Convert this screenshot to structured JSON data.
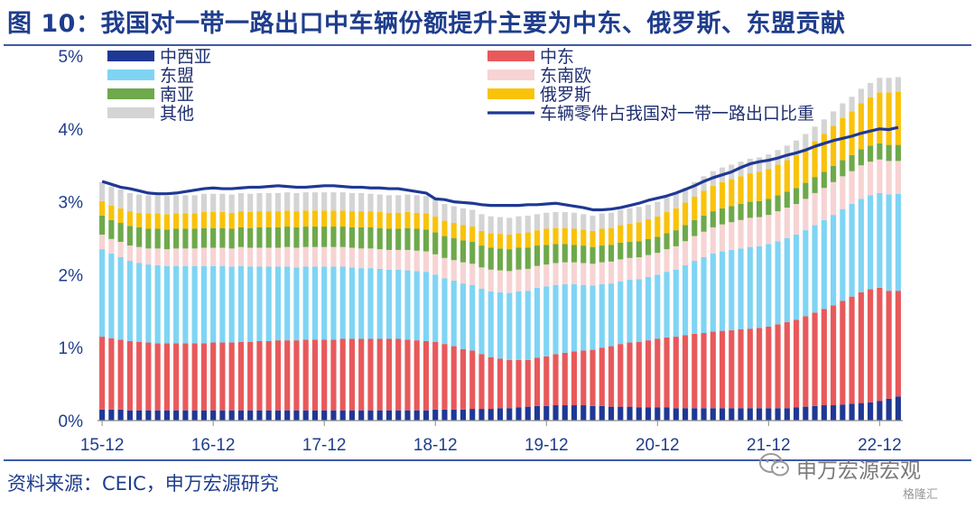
{
  "title": "图 10：我国对一带一路出口中车辆份额提升主要为中东、俄罗斯、东盟贡献",
  "source": "资料来源：CEIC，申万宏源研究",
  "watermark": {
    "text": "申万宏源宏观",
    "sub": "格隆汇"
  },
  "colors": {
    "中西亚": "#1f3894",
    "中东": "#e8595b",
    "东盟": "#7fd4f4",
    "东南欧": "#f7d3d3",
    "南亚": "#6ea94b",
    "俄罗斯": "#f9c20b",
    "其他": "#d4d4d4",
    "line": "#1f3894",
    "axis_text": "#1f3d8c"
  },
  "chart_data": {
    "type": "bar",
    "stacked": true,
    "title": "",
    "xlabel": "",
    "ylabel": "",
    "ylim": [
      0,
      5
    ],
    "y_ticks": [
      "0%",
      "1%",
      "2%",
      "3%",
      "4%",
      "5%"
    ],
    "x_tick_labels": [
      "15-12",
      "16-12",
      "17-12",
      "18-12",
      "19-12",
      "20-12",
      "21-12",
      "22-12"
    ],
    "legend": {
      "left": [
        "中西亚",
        "东盟",
        "南亚",
        "其他"
      ],
      "right": [
        "中东",
        "东南欧",
        "俄罗斯",
        "车辆零件占我国对一带一路出口比重"
      ]
    },
    "months": [
      "2015-12",
      "2016-01",
      "2016-02",
      "2016-03",
      "2016-04",
      "2016-05",
      "2016-06",
      "2016-07",
      "2016-08",
      "2016-09",
      "2016-10",
      "2016-11",
      "2016-12",
      "2017-01",
      "2017-02",
      "2017-03",
      "2017-04",
      "2017-05",
      "2017-06",
      "2017-07",
      "2017-08",
      "2017-09",
      "2017-10",
      "2017-11",
      "2017-12",
      "2018-01",
      "2018-02",
      "2018-03",
      "2018-04",
      "2018-05",
      "2018-06",
      "2018-07",
      "2018-08",
      "2018-09",
      "2018-10",
      "2018-11",
      "2018-12",
      "2019-01",
      "2019-02",
      "2019-03",
      "2019-04",
      "2019-05",
      "2019-06",
      "2019-07",
      "2019-08",
      "2019-09",
      "2019-10",
      "2019-11",
      "2019-12",
      "2020-01",
      "2020-02",
      "2020-03",
      "2020-04",
      "2020-05",
      "2020-06",
      "2020-07",
      "2020-08",
      "2020-09",
      "2020-10",
      "2020-11",
      "2020-12",
      "2021-01",
      "2021-02",
      "2021-03",
      "2021-04",
      "2021-05",
      "2021-06",
      "2021-07",
      "2021-08",
      "2021-09",
      "2021-10",
      "2021-11",
      "2021-12",
      "2022-01",
      "2022-02",
      "2022-03",
      "2022-04",
      "2022-05",
      "2022-06",
      "2022-07",
      "2022-08",
      "2022-09",
      "2022-10",
      "2022-11",
      "2022-12",
      "2023-01",
      "2023-02"
    ],
    "series": [
      {
        "name": "中西亚",
        "values": [
          0.15,
          0.15,
          0.15,
          0.14,
          0.14,
          0.14,
          0.14,
          0.14,
          0.14,
          0.14,
          0.14,
          0.14,
          0.14,
          0.14,
          0.14,
          0.14,
          0.14,
          0.14,
          0.14,
          0.14,
          0.14,
          0.14,
          0.14,
          0.14,
          0.14,
          0.14,
          0.14,
          0.14,
          0.14,
          0.14,
          0.14,
          0.14,
          0.14,
          0.14,
          0.14,
          0.14,
          0.15,
          0.15,
          0.15,
          0.15,
          0.16,
          0.16,
          0.16,
          0.17,
          0.17,
          0.18,
          0.19,
          0.2,
          0.2,
          0.21,
          0.21,
          0.21,
          0.21,
          0.2,
          0.2,
          0.19,
          0.19,
          0.19,
          0.18,
          0.18,
          0.18,
          0.18,
          0.17,
          0.17,
          0.17,
          0.17,
          0.17,
          0.17,
          0.17,
          0.17,
          0.17,
          0.17,
          0.17,
          0.17,
          0.17,
          0.18,
          0.19,
          0.2,
          0.21,
          0.21,
          0.22,
          0.23,
          0.24,
          0.25,
          0.27,
          0.3,
          0.33
        ]
      },
      {
        "name": "中东",
        "values": [
          1.0,
          0.98,
          0.96,
          0.95,
          0.94,
          0.93,
          0.92,
          0.92,
          0.92,
          0.92,
          0.92,
          0.92,
          0.93,
          0.93,
          0.93,
          0.94,
          0.94,
          0.95,
          0.95,
          0.96,
          0.96,
          0.96,
          0.97,
          0.97,
          0.97,
          0.97,
          0.98,
          0.98,
          0.98,
          0.98,
          0.98,
          0.98,
          0.98,
          0.97,
          0.96,
          0.95,
          0.93,
          0.9,
          0.87,
          0.83,
          0.8,
          0.75,
          0.71,
          0.68,
          0.66,
          0.65,
          0.64,
          0.66,
          0.68,
          0.7,
          0.72,
          0.74,
          0.75,
          0.77,
          0.8,
          0.83,
          0.86,
          0.88,
          0.9,
          0.92,
          0.94,
          0.96,
          0.98,
          1.0,
          1.02,
          1.03,
          1.05,
          1.06,
          1.07,
          1.08,
          1.09,
          1.1,
          1.12,
          1.15,
          1.18,
          1.2,
          1.24,
          1.28,
          1.32,
          1.37,
          1.42,
          1.47,
          1.52,
          1.55,
          1.55,
          1.48,
          1.45
        ]
      },
      {
        "name": "东盟",
        "values": [
          1.2,
          1.16,
          1.13,
          1.1,
          1.08,
          1.07,
          1.07,
          1.06,
          1.06,
          1.06,
          1.06,
          1.06,
          1.05,
          1.05,
          1.04,
          1.04,
          1.03,
          1.02,
          1.02,
          1.01,
          1.01,
          1.0,
          1.0,
          1.0,
          1.0,
          1.0,
          0.99,
          0.98,
          0.97,
          0.97,
          0.96,
          0.95,
          0.95,
          0.95,
          0.95,
          0.95,
          0.92,
          0.9,
          0.9,
          0.9,
          0.9,
          0.9,
          0.9,
          0.91,
          0.92,
          0.94,
          0.95,
          0.96,
          0.96,
          0.95,
          0.94,
          0.92,
          0.9,
          0.88,
          0.87,
          0.86,
          0.86,
          0.86,
          0.86,
          0.87,
          0.88,
          0.9,
          0.92,
          0.96,
          1.0,
          1.04,
          1.07,
          1.09,
          1.1,
          1.11,
          1.12,
          1.12,
          1.13,
          1.14,
          1.15,
          1.17,
          1.18,
          1.2,
          1.22,
          1.24,
          1.26,
          1.27,
          1.28,
          1.29,
          1.3,
          1.32,
          1.33
        ]
      },
      {
        "name": "东南欧",
        "values": [
          0.2,
          0.2,
          0.21,
          0.21,
          0.22,
          0.22,
          0.23,
          0.23,
          0.24,
          0.24,
          0.24,
          0.25,
          0.25,
          0.25,
          0.25,
          0.26,
          0.26,
          0.26,
          0.26,
          0.26,
          0.27,
          0.27,
          0.27,
          0.27,
          0.27,
          0.27,
          0.27,
          0.27,
          0.27,
          0.27,
          0.27,
          0.27,
          0.27,
          0.28,
          0.28,
          0.28,
          0.28,
          0.28,
          0.28,
          0.29,
          0.29,
          0.29,
          0.3,
          0.3,
          0.3,
          0.3,
          0.3,
          0.3,
          0.3,
          0.3,
          0.3,
          0.3,
          0.3,
          0.3,
          0.3,
          0.3,
          0.3,
          0.3,
          0.3,
          0.3,
          0.3,
          0.31,
          0.32,
          0.33,
          0.34,
          0.35,
          0.36,
          0.37,
          0.38,
          0.39,
          0.4,
          0.4,
          0.4,
          0.41,
          0.42,
          0.42,
          0.43,
          0.44,
          0.44,
          0.45,
          0.45,
          0.45,
          0.46,
          0.46,
          0.46,
          0.46,
          0.45
        ]
      },
      {
        "name": "南亚",
        "values": [
          0.26,
          0.26,
          0.26,
          0.27,
          0.27,
          0.27,
          0.27,
          0.27,
          0.27,
          0.27,
          0.27,
          0.27,
          0.27,
          0.27,
          0.27,
          0.27,
          0.27,
          0.28,
          0.28,
          0.28,
          0.28,
          0.28,
          0.28,
          0.28,
          0.28,
          0.28,
          0.28,
          0.28,
          0.29,
          0.29,
          0.29,
          0.29,
          0.29,
          0.3,
          0.3,
          0.3,
          0.3,
          0.3,
          0.3,
          0.3,
          0.3,
          0.3,
          0.3,
          0.3,
          0.3,
          0.3,
          0.29,
          0.28,
          0.27,
          0.26,
          0.25,
          0.24,
          0.24,
          0.23,
          0.23,
          0.23,
          0.23,
          0.22,
          0.22,
          0.22,
          0.22,
          0.22,
          0.22,
          0.22,
          0.22,
          0.22,
          0.22,
          0.22,
          0.22,
          0.22,
          0.22,
          0.22,
          0.22,
          0.22,
          0.22,
          0.22,
          0.22,
          0.22,
          0.22,
          0.22,
          0.22,
          0.22,
          0.22,
          0.22,
          0.22,
          0.22,
          0.22
        ]
      },
      {
        "name": "俄罗斯",
        "values": [
          0.2,
          0.2,
          0.2,
          0.2,
          0.2,
          0.21,
          0.21,
          0.21,
          0.21,
          0.21,
          0.21,
          0.22,
          0.22,
          0.22,
          0.22,
          0.22,
          0.22,
          0.22,
          0.22,
          0.22,
          0.22,
          0.22,
          0.22,
          0.22,
          0.22,
          0.22,
          0.22,
          0.22,
          0.22,
          0.22,
          0.22,
          0.22,
          0.22,
          0.22,
          0.22,
          0.22,
          0.22,
          0.21,
          0.21,
          0.21,
          0.21,
          0.2,
          0.2,
          0.2,
          0.2,
          0.2,
          0.21,
          0.21,
          0.22,
          0.22,
          0.22,
          0.22,
          0.22,
          0.22,
          0.23,
          0.23,
          0.24,
          0.25,
          0.26,
          0.27,
          0.28,
          0.29,
          0.3,
          0.31,
          0.32,
          0.34,
          0.35,
          0.36,
          0.37,
          0.38,
          0.39,
          0.4,
          0.41,
          0.42,
          0.43,
          0.45,
          0.47,
          0.49,
          0.52,
          0.55,
          0.58,
          0.6,
          0.63,
          0.66,
          0.7,
          0.72,
          0.73
        ]
      },
      {
        "name": "其他",
        "values": [
          0.26,
          0.26,
          0.26,
          0.25,
          0.25,
          0.25,
          0.25,
          0.25,
          0.25,
          0.25,
          0.25,
          0.25,
          0.25,
          0.25,
          0.25,
          0.25,
          0.25,
          0.25,
          0.25,
          0.25,
          0.25,
          0.25,
          0.25,
          0.25,
          0.25,
          0.25,
          0.25,
          0.25,
          0.25,
          0.24,
          0.24,
          0.24,
          0.24,
          0.24,
          0.24,
          0.24,
          0.24,
          0.23,
          0.23,
          0.23,
          0.23,
          0.23,
          0.23,
          0.23,
          0.23,
          0.23,
          0.23,
          0.22,
          0.22,
          0.22,
          0.22,
          0.22,
          0.21,
          0.21,
          0.21,
          0.21,
          0.21,
          0.21,
          0.21,
          0.2,
          0.2,
          0.2,
          0.2,
          0.2,
          0.2,
          0.2,
          0.2,
          0.2,
          0.2,
          0.2,
          0.2,
          0.2,
          0.2,
          0.2,
          0.2,
          0.2,
          0.2,
          0.2,
          0.2,
          0.2,
          0.2,
          0.2,
          0.2,
          0.2,
          0.2,
          0.2,
          0.2
        ]
      }
    ],
    "line": {
      "name": "车辆零件占我国对一带一路出口比重",
      "values": [
        3.28,
        3.24,
        3.2,
        3.18,
        3.15,
        3.12,
        3.11,
        3.11,
        3.12,
        3.14,
        3.16,
        3.18,
        3.19,
        3.18,
        3.18,
        3.19,
        3.2,
        3.2,
        3.21,
        3.22,
        3.21,
        3.2,
        3.2,
        3.21,
        3.22,
        3.22,
        3.21,
        3.2,
        3.2,
        3.19,
        3.19,
        3.18,
        3.18,
        3.16,
        3.14,
        3.12,
        3.04,
        3.03,
        3.0,
        2.99,
        2.98,
        2.96,
        2.95,
        2.95,
        2.95,
        2.95,
        2.96,
        2.96,
        2.97,
        2.98,
        2.96,
        2.94,
        2.92,
        2.89,
        2.89,
        2.9,
        2.92,
        2.95,
        2.98,
        3.02,
        3.05,
        3.08,
        3.12,
        3.17,
        3.22,
        3.28,
        3.33,
        3.37,
        3.41,
        3.47,
        3.52,
        3.55,
        3.57,
        3.6,
        3.64,
        3.67,
        3.71,
        3.76,
        3.8,
        3.84,
        3.87,
        3.9,
        3.94,
        3.97,
        4.0,
        3.99,
        4.02
      ]
    }
  }
}
